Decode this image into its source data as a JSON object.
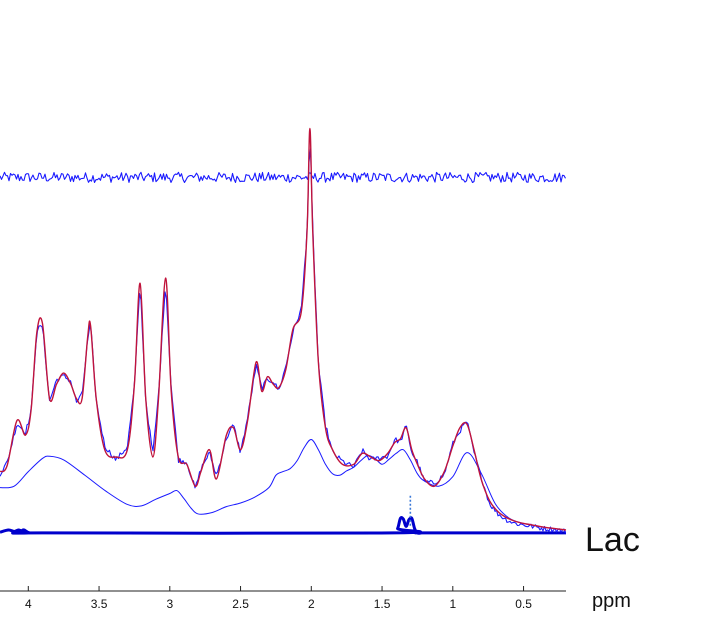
{
  "chart_data": {
    "type": "line",
    "title": "",
    "xlabel": "ppm",
    "ylabel": "",
    "x_reversed": true,
    "xlim": [
      4.2,
      0.2
    ],
    "ticks": [
      {
        "value": 4,
        "label": "4"
      },
      {
        "value": 3.5,
        "label": "3.5"
      },
      {
        "value": 3,
        "label": "3"
      },
      {
        "value": 2.5,
        "label": "2.5"
      },
      {
        "value": 2,
        "label": "2"
      },
      {
        "value": 1.5,
        "label": "1.5"
      },
      {
        "value": 1,
        "label": "1"
      },
      {
        "value": 0.5,
        "label": "0.5"
      }
    ],
    "grid": false,
    "annotations": [
      {
        "text": "Lac",
        "x": 0.2,
        "y": -0.4
      },
      {
        "type": "dashed-vline",
        "x": 1.3,
        "from": 0.3,
        "to": 4.7
      }
    ],
    "series": [
      {
        "role": "fit",
        "color": "#c0143c",
        "x": [
          4.2,
          4.15,
          4.08,
          4.02,
          3.98,
          3.94,
          3.9,
          3.85,
          3.8,
          3.75,
          3.7,
          3.66,
          3.62,
          3.58,
          3.56,
          3.52,
          3.46,
          3.38,
          3.3,
          3.25,
          3.21,
          3.17,
          3.12,
          3.08,
          3.03,
          2.99,
          2.94,
          2.88,
          2.82,
          2.78,
          2.72,
          2.67,
          2.6,
          2.55,
          2.5,
          2.45,
          2.39,
          2.35,
          2.31,
          2.27,
          2.23,
          2.18,
          2.13,
          2.07,
          2.03,
          2.01,
          1.99,
          1.95,
          1.9,
          1.85,
          1.78,
          1.7,
          1.64,
          1.58,
          1.52,
          1.46,
          1.41,
          1.37,
          1.33,
          1.29,
          1.25,
          1.2,
          1.13,
          1.06,
          1.0,
          0.95,
          0.9,
          0.85,
          0.8,
          0.74,
          0.68,
          0.62,
          0.56,
          0.5,
          0.44,
          0.36,
          0.28,
          0.2
        ],
        "y": [
          8.0,
          8.8,
          15.0,
          13.0,
          16.5,
          27.0,
          28.3,
          18.0,
          20.0,
          21.5,
          20.0,
          18.0,
          18.0,
          26.5,
          28.0,
          18.0,
          11.0,
          10.0,
          11.0,
          20.0,
          33.8,
          18.0,
          10.0,
          18.0,
          34.5,
          19.0,
          10.0,
          9.0,
          6.0,
          8.0,
          11.0,
          7.0,
          13.0,
          14.0,
          11.0,
          15.0,
          23.0,
          19.0,
          21.0,
          20.0,
          19.5,
          22.0,
          27.5,
          30.0,
          41.0,
          55.0,
          41.0,
          23.0,
          14.0,
          11.0,
          9.0,
          9.0,
          10.5,
          10.0,
          9.5,
          10.5,
          12.0,
          12.5,
          14.0,
          11.0,
          9.0,
          7.0,
          6.0,
          8.0,
          11.5,
          14.0,
          14.5,
          11.0,
          7.0,
          4.0,
          2.5,
          1.7,
          1.2,
          0.9,
          0.7,
          0.4,
          0.2,
          0.0
        ]
      },
      {
        "role": "measured",
        "color": "#1a1aff",
        "x": [
          4.2,
          4.15,
          4.08,
          4.02,
          3.98,
          3.94,
          3.9,
          3.85,
          3.8,
          3.75,
          3.7,
          3.66,
          3.62,
          3.58,
          3.56,
          3.52,
          3.46,
          3.38,
          3.3,
          3.25,
          3.21,
          3.17,
          3.12,
          3.08,
          3.03,
          2.99,
          2.94,
          2.88,
          2.82,
          2.78,
          2.72,
          2.67,
          2.6,
          2.55,
          2.5,
          2.45,
          2.39,
          2.35,
          2.31,
          2.27,
          2.23,
          2.18,
          2.13,
          2.07,
          2.03,
          2.01,
          1.99,
          1.95,
          1.9,
          1.85,
          1.78,
          1.7,
          1.64,
          1.58,
          1.52,
          1.46,
          1.41,
          1.37,
          1.33,
          1.29,
          1.25,
          1.2,
          1.13,
          1.06,
          1.0,
          0.95,
          0.9,
          0.85,
          0.8,
          0.74,
          0.68,
          0.62,
          0.56,
          0.5,
          0.44,
          0.36,
          0.28,
          0.2
        ],
        "y": [
          7.7,
          9.2,
          14.6,
          13.4,
          16.1,
          27.4,
          28.0,
          17.6,
          20.6,
          21.1,
          20.4,
          17.5,
          18.5,
          26.1,
          28.3,
          17.6,
          11.5,
          9.6,
          11.4,
          19.6,
          34.0,
          17.7,
          10.4,
          18.4,
          34.2,
          19.5,
          9.6,
          9.3,
          5.6,
          8.4,
          10.6,
          7.4,
          12.6,
          14.4,
          10.6,
          15.4,
          22.6,
          19.4,
          20.6,
          20.4,
          19.1,
          22.4,
          27.1,
          30.3,
          40.7,
          54.8,
          41.3,
          22.6,
          14.4,
          10.6,
          9.4,
          8.6,
          10.9,
          9.6,
          9.9,
          10.1,
          12.4,
          12.1,
          14.3,
          10.6,
          9.3,
          6.6,
          6.4,
          7.6,
          11.8,
          13.6,
          14.9,
          10.6,
          7.3,
          3.6,
          2.2,
          1.4,
          0.9,
          0.7,
          0.5,
          0.2,
          0.1,
          -0.2
        ]
      },
      {
        "role": "baseline",
        "color": "#1a1aff",
        "x": [
          4.2,
          4.1,
          4.0,
          3.9,
          3.85,
          3.75,
          3.6,
          3.45,
          3.3,
          3.2,
          3.1,
          3.0,
          2.95,
          2.9,
          2.85,
          2.8,
          2.7,
          2.6,
          2.5,
          2.4,
          2.3,
          2.25,
          2.2,
          2.15,
          2.1,
          2.05,
          2.0,
          1.95,
          1.9,
          1.85,
          1.8,
          1.75,
          1.7,
          1.65,
          1.6,
          1.55,
          1.5,
          1.45,
          1.4,
          1.35,
          1.3,
          1.25,
          1.2,
          1.1,
          1.0,
          0.9,
          0.8,
          0.7,
          0.6,
          0.5,
          0.4,
          0.3,
          0.2
        ],
        "y": [
          5.8,
          6.0,
          8.0,
          9.8,
          10.1,
          9.6,
          7.5,
          5.3,
          3.5,
          3.3,
          4.2,
          5.0,
          5.4,
          4.3,
          3.0,
          2.2,
          2.4,
          3.2,
          3.7,
          4.5,
          5.8,
          7.5,
          8.0,
          8.4,
          9.5,
          11.3,
          12.4,
          11.0,
          9.0,
          7.7,
          7.5,
          8.1,
          8.6,
          9.5,
          10.2,
          9.8,
          9.0,
          9.7,
          10.5,
          11.0,
          9.6,
          7.7,
          6.7,
          6.0,
          7.3,
          10.6,
          7.8,
          3.6,
          1.6,
          0.9,
          0.5,
          0.2,
          0.0
        ]
      },
      {
        "role": "residual",
        "color": "#1a1aff",
        "x": [
          4.2,
          0.2
        ],
        "y": [
          48.3,
          48.3
        ]
      },
      {
        "name": "Lac",
        "role": "metabolite",
        "color": "#0000cc",
        "x": [
          4.2,
          4.14,
          4.1,
          4.07,
          4.05,
          4.03,
          3.99,
          3.9,
          1.42,
          1.39,
          1.37,
          1.35,
          1.33,
          1.31,
          1.29,
          1.27,
          1.25,
          1.22,
          1.18,
          0.2
        ],
        "y": [
          -0.3,
          0.0,
          -0.2,
          0.0,
          -0.1,
          0.0,
          -0.4,
          -0.4,
          -0.4,
          0.2,
          1.6,
          1.5,
          0.5,
          1.4,
          1.6,
          0.2,
          -0.4,
          -0.4,
          -0.4,
          -0.4
        ]
      }
    ]
  }
}
